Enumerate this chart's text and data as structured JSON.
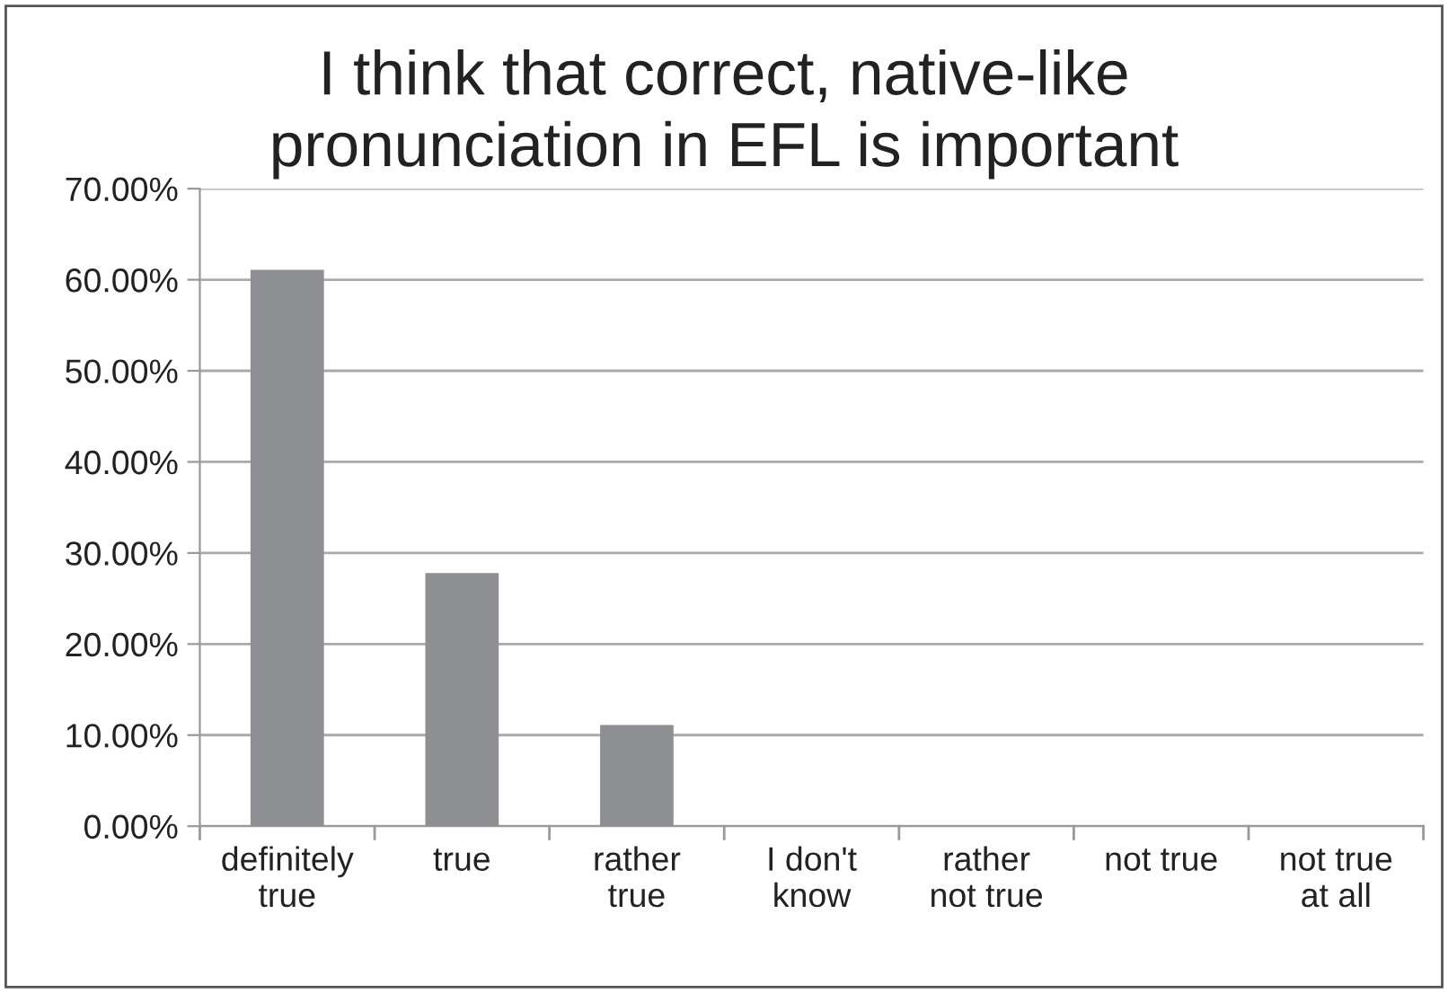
{
  "chart_data": {
    "type": "bar",
    "title": "I think that correct, native-like\npronunciation in EFL is important",
    "categories": [
      "definitely\ntrue",
      "true",
      "rather\ntrue",
      "I don't\nknow",
      "rather\nnot true",
      "not true",
      "not true\nat all"
    ],
    "values": [
      61.1,
      27.8,
      11.1,
      0,
      0,
      0,
      0
    ],
    "color": "#8e8f93",
    "ylim": [
      0,
      70
    ],
    "yticks": [
      {
        "value": 0,
        "label": "0.00%"
      },
      {
        "value": 10,
        "label": "10.00%"
      },
      {
        "value": 20,
        "label": "20.00%"
      },
      {
        "value": 30,
        "label": "30.00%"
      },
      {
        "value": 40,
        "label": "40.00%"
      },
      {
        "value": 50,
        "label": "50.00%"
      },
      {
        "value": 60,
        "label": "60.00%"
      },
      {
        "value": 70,
        "label": "70.00%"
      }
    ],
    "grid": "y",
    "legend": false
  }
}
